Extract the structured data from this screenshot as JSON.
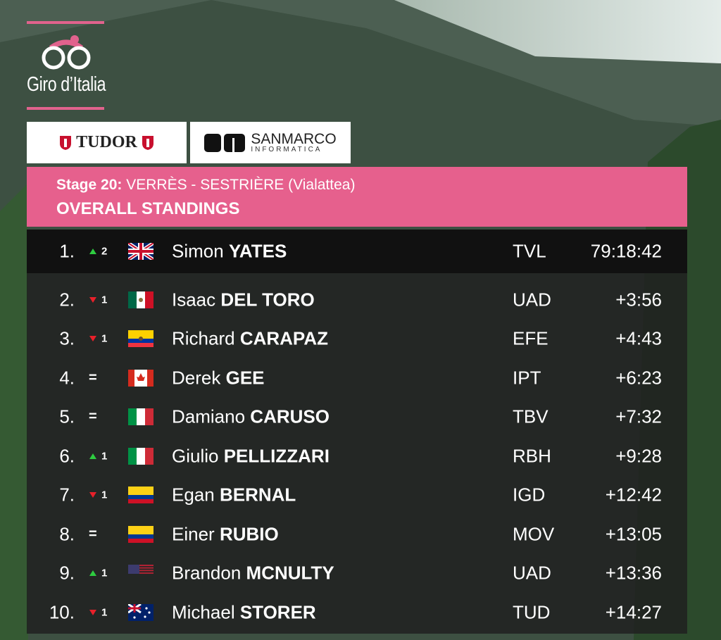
{
  "logo": {
    "text": "Giro d’Italia"
  },
  "sponsors": {
    "tudor": "TUDOR",
    "sanmarco": "SANMARCO",
    "sanmarco_sub": "INFORMATICA"
  },
  "header": {
    "stage_label": "Stage 20:",
    "stage_route": "VERRÈS - SESTRIÈRE (Vialattea)",
    "title": "OVERALL STANDINGS"
  },
  "standings": [
    {
      "rank": "1.",
      "direction": "up",
      "change": "2",
      "flag": "gb",
      "first": "Simon",
      "last": "YATES",
      "team": "TVL",
      "time": "79:18:42"
    },
    {
      "rank": "2.",
      "direction": "down",
      "change": "1",
      "flag": "mx",
      "first": "Isaac",
      "last": "DEL TORO",
      "team": "UAD",
      "time": "+3:56"
    },
    {
      "rank": "3.",
      "direction": "down",
      "change": "1",
      "flag": "ec",
      "first": "Richard",
      "last": "CARAPAZ",
      "team": "EFE",
      "time": "+4:43"
    },
    {
      "rank": "4.",
      "direction": "same",
      "change": "=",
      "flag": "ca",
      "first": "Derek",
      "last": "GEE",
      "team": "IPT",
      "time": "+6:23"
    },
    {
      "rank": "5.",
      "direction": "same",
      "change": "=",
      "flag": "it",
      "first": "Damiano",
      "last": "CARUSO",
      "team": "TBV",
      "time": "+7:32"
    },
    {
      "rank": "6.",
      "direction": "up",
      "change": "1",
      "flag": "it",
      "first": "Giulio",
      "last": "PELLIZZARI",
      "team": "RBH",
      "time": "+9:28"
    },
    {
      "rank": "7.",
      "direction": "down",
      "change": "1",
      "flag": "co",
      "first": "Egan",
      "last": "BERNAL",
      "team": "IGD",
      "time": "+12:42"
    },
    {
      "rank": "8.",
      "direction": "same",
      "change": "=",
      "flag": "co",
      "first": "Einer",
      "last": "RUBIO",
      "team": "MOV",
      "time": "+13:05"
    },
    {
      "rank": "9.",
      "direction": "up",
      "change": "1",
      "flag": "us",
      "first": "Brandon",
      "last": "MCNULTY",
      "team": "UAD",
      "time": "+13:36"
    },
    {
      "rank": "10.",
      "direction": "down",
      "change": "1",
      "flag": "au",
      "first": "Michael",
      "last": "STORER",
      "team": "TUD",
      "time": "+14:27"
    }
  ]
}
